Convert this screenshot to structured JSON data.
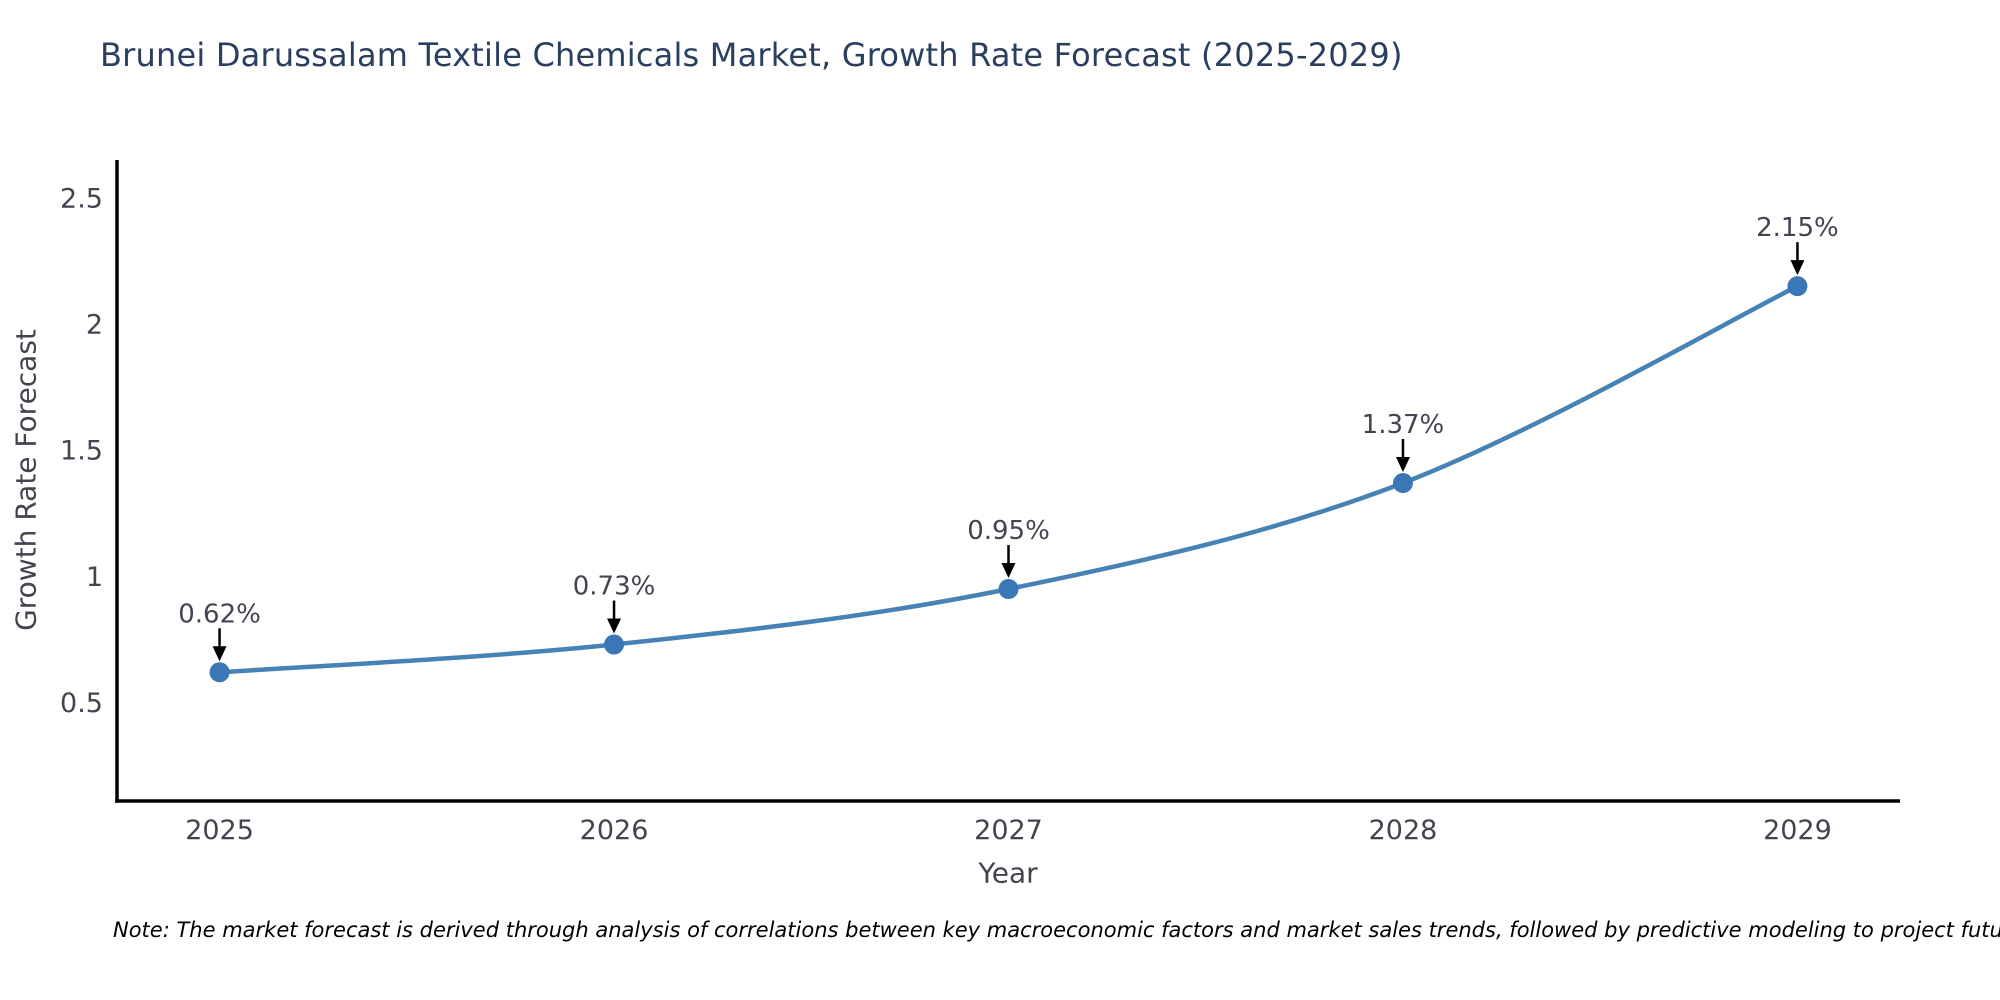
{
  "chart_data": {
    "type": "line",
    "title": "Brunei Darussalam Textile Chemicals Market, Growth Rate Forecast (2025-2029)",
    "xlabel": "Year",
    "ylabel": "Growth Rate Forecast",
    "x": [
      2025,
      2026,
      2027,
      2028,
      2029
    ],
    "y": [
      0.62,
      0.73,
      0.95,
      1.37,
      2.15
    ],
    "point_labels": [
      "0.62%",
      "0.73%",
      "0.95%",
      "1.37%",
      "2.15%"
    ],
    "x_tick_labels": [
      "2025",
      "2026",
      "2027",
      "2028",
      "2029"
    ],
    "y_ticks": [
      0.5,
      1,
      1.5,
      2,
      2.5
    ],
    "y_tick_labels": [
      "0.5",
      "1",
      "1.5",
      "2",
      "2.5"
    ],
    "xlim": [
      2024.74,
      2029.26
    ],
    "ylim": [
      0.11,
      2.65
    ],
    "grid": false,
    "legend": "none",
    "line_style": "smooth",
    "annotation_style": "arrow-down-to-point",
    "colors": {
      "line": "#4682b4",
      "marker": "#3a77b6",
      "axis": "#000000",
      "title": "#2a3f5f",
      "tick": "#42454f",
      "axis_title": "#42454f",
      "annotation": "#42454f",
      "arrow": "#000000",
      "note": "#000000"
    }
  },
  "note": {
    "text": "Note: The market forecast is derived through analysis of correlations between key macroeconomic factors and market sales trends, followed by predictive modeling to project future sales"
  }
}
